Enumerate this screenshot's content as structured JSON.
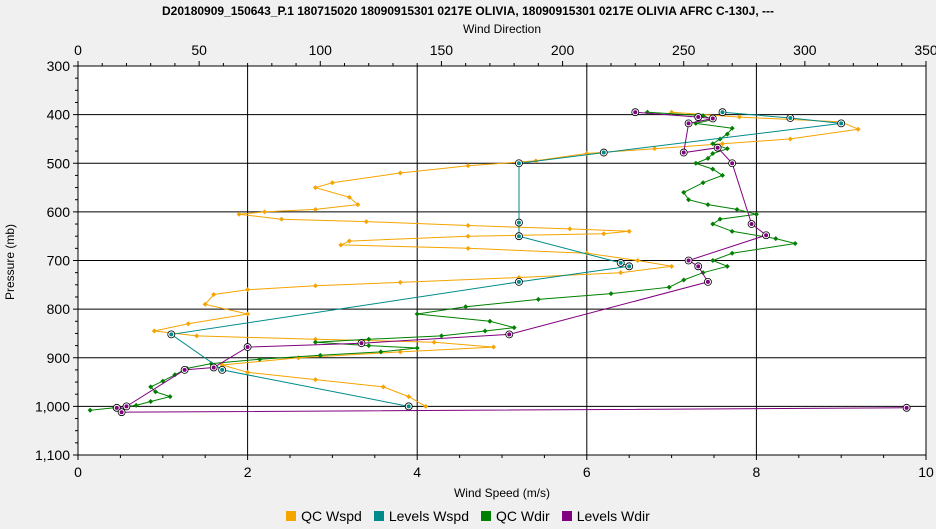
{
  "title": "D20180909_150643_P.1 180715020 18090915301 0217E OLIVIA, 18090915301 0217E OLIVIA AFRC C-130J, ---",
  "chart_data": {
    "type": "line",
    "top_axis": {
      "label": "Wind Direction",
      "range": [
        0,
        350
      ],
      "ticks": [
        "0",
        "50",
        "100",
        "150",
        "200",
        "250",
        "300",
        "350"
      ]
    },
    "bottom_axis": {
      "label": "Wind Speed (m/s)",
      "range": [
        0,
        10
      ],
      "ticks": [
        "0",
        "2",
        "4",
        "6",
        "8",
        "10"
      ]
    },
    "y_axis": {
      "label": "Pressure (mb)",
      "range": [
        300,
        1100
      ],
      "inverted": true,
      "ticks": [
        "300",
        "400",
        "500",
        "600",
        "700",
        "800",
        "900",
        "1,000",
        "1,100"
      ]
    },
    "grid": true,
    "legend_position": "bottom",
    "series": [
      {
        "name": "QC Wspd",
        "color": "#f5a400",
        "axis": "bottom",
        "x": [
          7.0,
          7.8,
          9.0,
          9.2,
          8.4,
          7.6,
          6.8,
          6.0,
          5.4,
          4.6,
          3.8,
          3.0,
          2.8,
          3.2,
          3.3,
          2.8,
          2.2,
          1.9,
          2.4,
          3.4,
          4.6,
          5.8,
          6.5,
          6.2,
          4.6,
          3.2,
          3.1,
          4.6,
          6.0,
          6.6,
          7.0,
          6.4,
          5.2,
          3.8,
          2.8,
          2.0,
          1.6,
          1.5,
          2.0,
          1.3,
          0.9,
          1.4,
          2.8,
          4.2,
          4.9,
          3.8,
          2.6,
          1.7,
          2.0,
          2.8,
          3.6,
          3.9,
          4.1
        ],
        "y": [
          395,
          405,
          415,
          430,
          450,
          460,
          470,
          480,
          495,
          505,
          520,
          540,
          550,
          570,
          585,
          595,
          600,
          605,
          615,
          620,
          628,
          635,
          640,
          645,
          650,
          660,
          668,
          675,
          685,
          700,
          712,
          725,
          735,
          745,
          752,
          760,
          770,
          790,
          810,
          830,
          845,
          855,
          862,
          868,
          878,
          888,
          900,
          915,
          930,
          945,
          960,
          980,
          1000
        ]
      },
      {
        "name": "Levels Wspd",
        "color": "#008b8b",
        "axis": "bottom",
        "x": [
          7.6,
          8.4,
          9.0,
          6.2,
          5.2,
          5.2,
          5.2,
          6.4,
          6.5,
          5.2,
          1.1,
          1.7,
          3.9,
          3.9
        ],
        "y": [
          395,
          407,
          418,
          478,
          500,
          622,
          650,
          705,
          712,
          744,
          852,
          925,
          1000,
          1000
        ]
      },
      {
        "name": "QC Wdir",
        "color": "#008000",
        "axis": "top",
        "x": [
          235,
          258,
          262,
          255,
          270,
          268,
          265,
          262,
          268,
          262,
          260,
          255,
          262,
          266,
          258,
          250,
          252,
          260,
          272,
          280,
          265,
          262,
          270,
          288,
          296,
          270,
          262,
          268,
          258,
          250,
          244,
          220,
          190,
          160,
          140,
          170,
          180,
          168,
          150,
          120,
          98,
          120,
          140,
          125,
          100,
          75,
          55,
          45,
          40,
          35,
          30,
          32,
          38,
          30,
          24,
          15,
          5
        ],
        "y": [
          395,
          402,
          410,
          418,
          428,
          440,
          450,
          460,
          470,
          480,
          490,
          500,
          512,
          525,
          540,
          560,
          575,
          585,
          595,
          605,
          615,
          625,
          640,
          655,
          665,
          685,
          700,
          712,
          725,
          740,
          755,
          768,
          780,
          795,
          810,
          825,
          838,
          845,
          855,
          862,
          868,
          875,
          880,
          888,
          895,
          903,
          912,
          922,
          935,
          948,
          960,
          970,
          980,
          990,
          998,
          1003,
          1008
        ]
      },
      {
        "name": "Levels Wdir",
        "color": "#800080",
        "axis": "top",
        "x": [
          230,
          256,
          262,
          252,
          250,
          264,
          270,
          278,
          284,
          252,
          256,
          260,
          178,
          117,
          70,
          56,
          44,
          20,
          16,
          18,
          342
        ],
        "y": [
          395,
          405,
          408,
          418,
          478,
          468,
          500,
          625,
          648,
          700,
          712,
          744,
          852,
          870,
          878,
          920,
          925,
          1000,
          1003,
          1012,
          1003
        ]
      }
    ]
  }
}
